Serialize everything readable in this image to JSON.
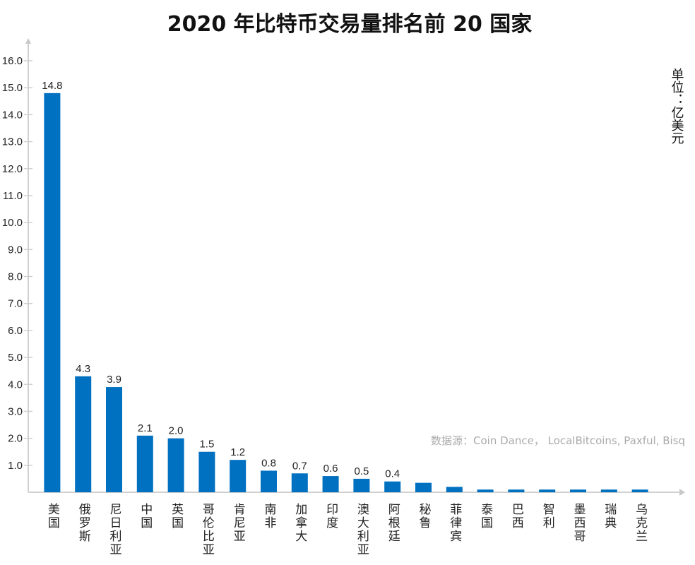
{
  "chart_data": {
    "type": "bar",
    "title": "2020 年比特币交易量排名前 20 国家",
    "unit_label": "单位：亿美元",
    "source": "数据源：Coin Dance， LocalBitcoins, Paxful, Bisq",
    "xlabel": "",
    "ylabel": "",
    "ylim": [
      0,
      16
    ],
    "yticks": [
      "1.0",
      "2.0",
      "3.0",
      "4.0",
      "5.0",
      "6.0",
      "7.0",
      "8.0",
      "9.0",
      "10.0",
      "11.0",
      "12.0",
      "13.0",
      "14.0",
      "15.0",
      "16.0"
    ],
    "categories": [
      "美国",
      "俄罗斯",
      "尼日利亚",
      "中国",
      "英国",
      "哥伦比亚",
      "肯尼亚",
      "南非",
      "加拿大",
      "印度",
      "澳大利亚",
      "阿根廷",
      "秘鲁",
      "菲律宾",
      "泰国",
      "巴西",
      "智利",
      "墨西哥",
      "瑞典",
      "乌克兰"
    ],
    "values": [
      14.8,
      4.3,
      3.9,
      2.1,
      2.0,
      1.5,
      1.2,
      0.8,
      0.7,
      0.6,
      0.5,
      0.4,
      0.35,
      0.2,
      0.1,
      0.1,
      0.1,
      0.1,
      0.1,
      0.1
    ],
    "data_labels": [
      "14.8",
      "4.3",
      "3.9",
      "2.1",
      "2.0",
      "1.5",
      "1.2",
      "0.8",
      "0.7",
      "0.6",
      "0.5",
      "0.4",
      "",
      "",
      "",
      "",
      "",
      "",
      "",
      ""
    ],
    "grid": false,
    "bar_color": "#0070c0"
  }
}
